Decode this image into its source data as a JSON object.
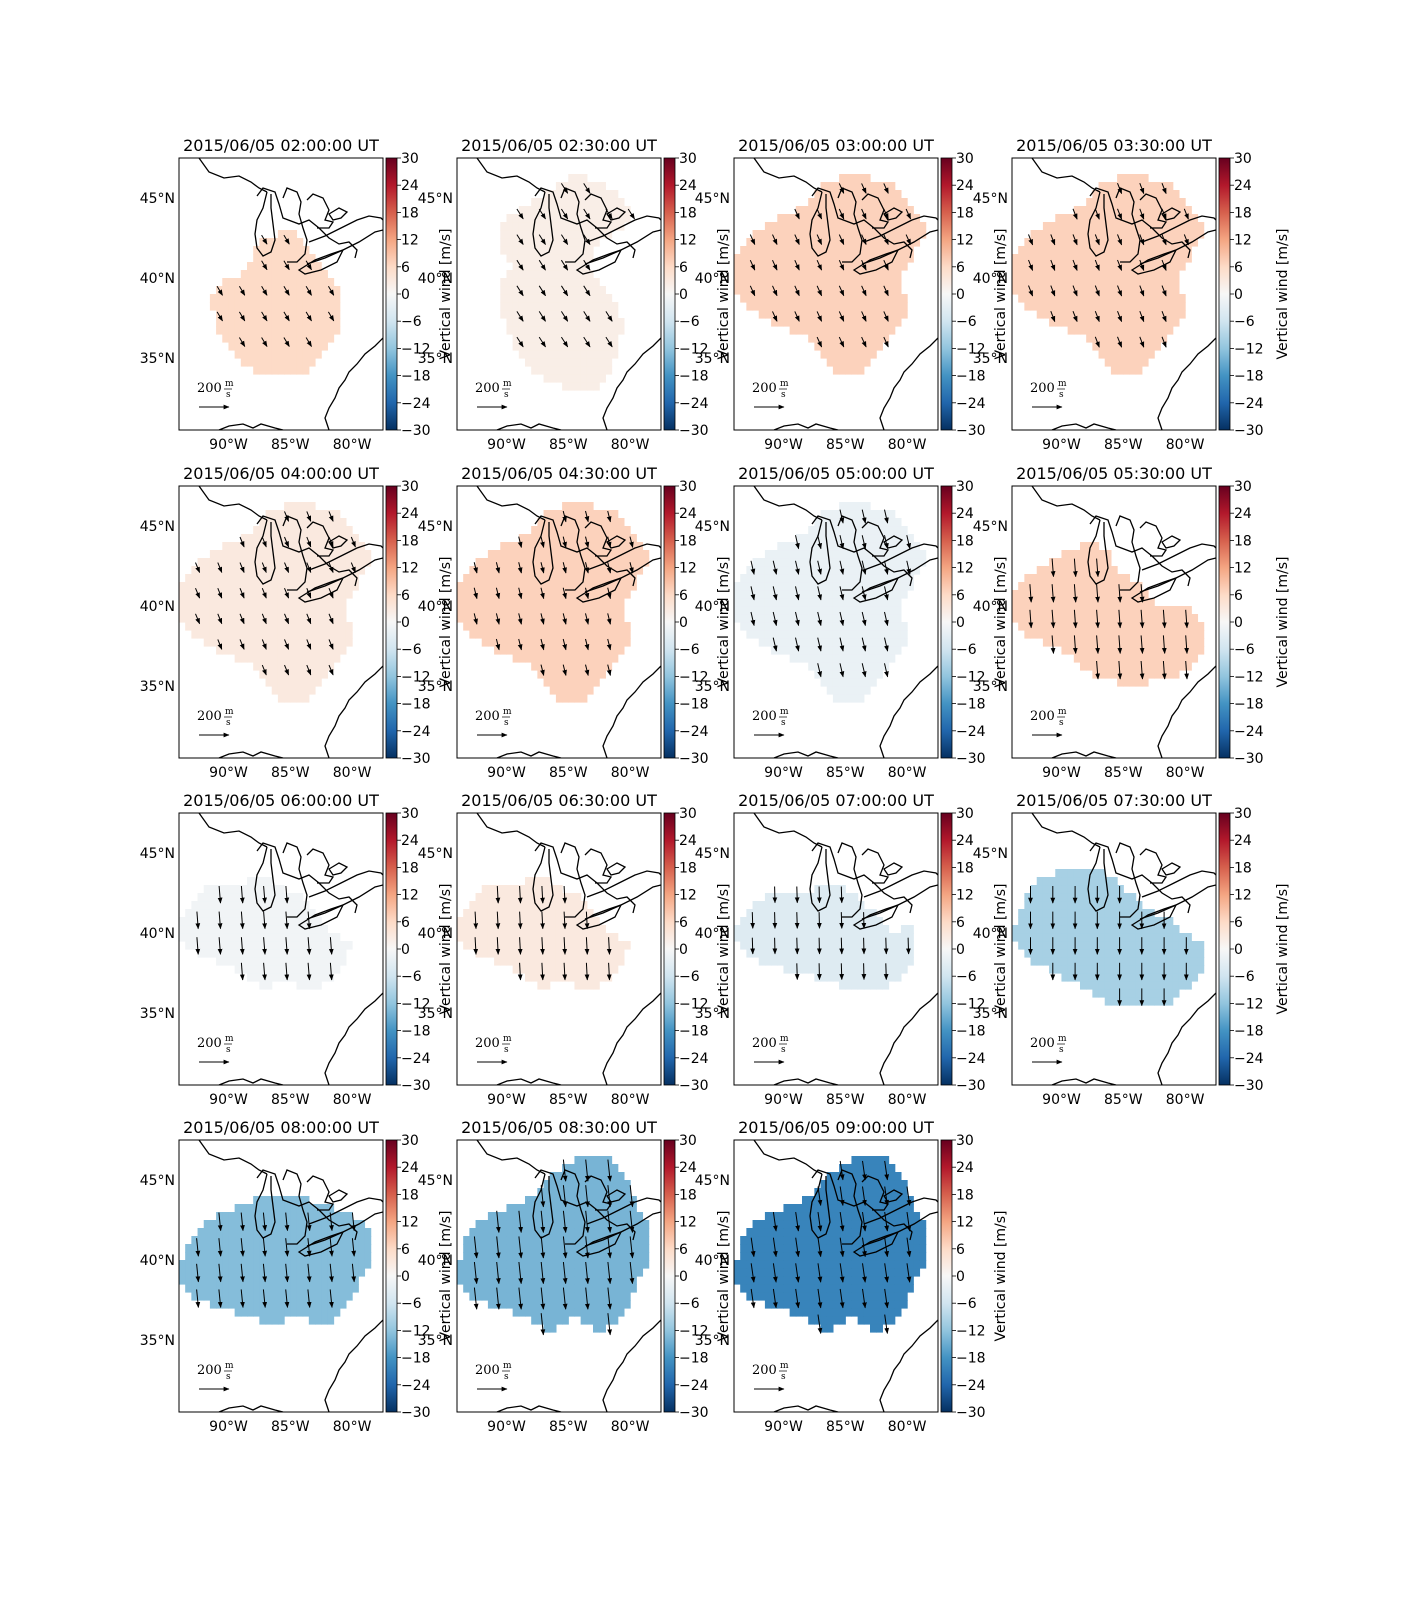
{
  "colorbar": {
    "label": "Vertical wind [m/s]",
    "ticks": [
      "30",
      "24",
      "18",
      "12",
      "6",
      "0",
      "−6",
      "−12",
      "−18",
      "−24",
      "−30"
    ],
    "range": [
      -30,
      30
    ],
    "colormap": "RdBu_r",
    "low_color": "#053061",
    "mid_color": "#f7f7f7",
    "high_color": "#67001f"
  },
  "axes": {
    "x_ticks": [
      "90°W",
      "85°W",
      "80°W"
    ],
    "y_ticks": [
      "45°N",
      "40°N",
      "35°N"
    ],
    "lon_range": [
      -94,
      -77.5
    ],
    "lat_range": [
      30.5,
      47.5
    ]
  },
  "reference_arrow": {
    "value": "200",
    "unit_num": "m",
    "unit_den": "s"
  },
  "panels": [
    {
      "title": "2015/06/05 02:00:00 UT",
      "vertical_wind": 6,
      "region": "A",
      "wind": [
        0.6,
        -1.0
      ]
    },
    {
      "title": "2015/06/05 02:30:00 UT",
      "vertical_wind": 2,
      "region": "B",
      "wind": [
        0.7,
        -1.1
      ]
    },
    {
      "title": "2015/06/05 03:00:00 UT",
      "vertical_wind": 7,
      "region": "C",
      "wind": [
        0.5,
        -1.1
      ]
    },
    {
      "title": "2015/06/05 03:30:00 UT",
      "vertical_wind": 7,
      "region": "C",
      "wind": [
        0.45,
        -1.15
      ]
    },
    {
      "title": "2015/06/05 04:00:00 UT",
      "vertical_wind": 3,
      "region": "C",
      "wind": [
        0.45,
        -1.1
      ]
    },
    {
      "title": "2015/06/05 04:30:00 UT",
      "vertical_wind": 7,
      "region": "C",
      "wind": [
        0.3,
        -1.2
      ]
    },
    {
      "title": "2015/06/05 05:00:00 UT",
      "vertical_wind": -2,
      "region": "C",
      "wind": [
        0.35,
        -1.5
      ]
    },
    {
      "title": "2015/06/05 05:30:00 UT",
      "vertical_wind": 7,
      "region": "D",
      "wind": [
        0.15,
        -2.0
      ]
    },
    {
      "title": "2015/06/05 06:00:00 UT",
      "vertical_wind": -1,
      "region": "E",
      "wind": [
        0.15,
        -1.9
      ]
    },
    {
      "title": "2015/06/05 06:30:00 UT",
      "vertical_wind": 3,
      "region": "E",
      "wind": [
        0.1,
        -1.9
      ]
    },
    {
      "title": "2015/06/05 07:00:00 UT",
      "vertical_wind": -4,
      "region": "F",
      "wind": [
        0.05,
        -1.8
      ]
    },
    {
      "title": "2015/06/05 07:30:00 UT",
      "vertical_wind": -10,
      "region": "G",
      "wind": [
        0.0,
        -1.9
      ]
    },
    {
      "title": "2015/06/05 08:00:00 UT",
      "vertical_wind": -13,
      "region": "H",
      "wind": [
        0.2,
        -2.0
      ]
    },
    {
      "title": "2015/06/05 08:30:00 UT",
      "vertical_wind": -14,
      "region": "I",
      "wind": [
        0.25,
        -2.4
      ]
    },
    {
      "title": "2015/06/05 09:00:00 UT",
      "vertical_wind": -20,
      "region": "I",
      "wind": [
        0.3,
        -2.1
      ]
    }
  ]
}
